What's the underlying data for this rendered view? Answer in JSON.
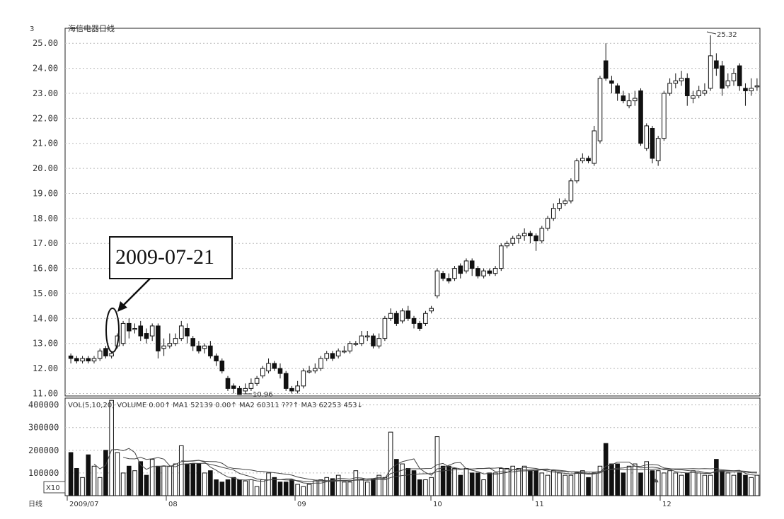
{
  "chart_data": {
    "type": "candlestick",
    "title": "海信电器日线",
    "y_unit_mark": "3",
    "price_axis": {
      "ticks": [
        "25.00",
        "24.00",
        "23.00",
        "22.00",
        "21.00",
        "20.00",
        "19.00",
        "18.00",
        "17.00",
        "16.00",
        "15.00",
        "14.00",
        "13.00",
        "12.00",
        "11.00"
      ],
      "ylim": [
        10.9,
        25.6
      ]
    },
    "volume_axis": {
      "ticks": [
        "400000",
        "300000",
        "200000",
        "100000"
      ],
      "ylim": [
        0,
        430000
      ],
      "scale_label": "X10"
    },
    "volume_header": "VOL(5,10,20)  VOLUME  0.00↑  MA1  52139  0.00↑  MA2  60311  ???↑  MA3  62253  453↓",
    "x_labels": [
      "日线",
      "2009/07",
      "08",
      "09",
      "10",
      "11",
      "12"
    ],
    "annotations": {
      "callout": "2009-07-21",
      "high_label": "25.32",
      "low_label": "10.96"
    },
    "grid": true,
    "candles": [
      [
        12.5,
        12.4,
        12.6,
        12.2
      ],
      [
        12.4,
        12.3,
        12.5,
        12.2
      ],
      [
        12.3,
        12.4,
        12.5,
        12.2
      ],
      [
        12.4,
        12.3,
        12.5,
        12.2
      ],
      [
        12.3,
        12.4,
        12.5,
        12.2
      ],
      [
        12.4,
        12.7,
        12.8,
        12.3
      ],
      [
        12.8,
        12.5,
        12.9,
        12.4
      ],
      [
        12.5,
        12.6,
        12.7,
        12.4
      ],
      [
        12.9,
        13.3,
        13.4,
        12.8
      ],
      [
        13.0,
        13.8,
        13.9,
        12.9
      ],
      [
        13.8,
        13.5,
        14.0,
        13.2
      ],
      [
        13.6,
        13.6,
        13.8,
        13.4
      ],
      [
        13.7,
        13.3,
        13.9,
        13.1
      ],
      [
        13.4,
        13.2,
        13.6,
        13.0
      ],
      [
        13.3,
        13.7,
        13.8,
        13.1
      ],
      [
        13.7,
        12.7,
        13.8,
        12.4
      ],
      [
        12.8,
        12.9,
        13.2,
        12.5
      ],
      [
        12.9,
        13.0,
        13.4,
        12.8
      ],
      [
        13.0,
        13.2,
        13.4,
        12.9
      ],
      [
        13.2,
        13.7,
        13.9,
        13.1
      ],
      [
        13.6,
        13.3,
        13.8,
        13.0
      ],
      [
        13.2,
        12.9,
        13.3,
        12.7
      ],
      [
        12.9,
        12.7,
        13.1,
        12.6
      ],
      [
        12.8,
        12.9,
        13.0,
        12.6
      ],
      [
        12.9,
        12.5,
        13.1,
        12.4
      ],
      [
        12.5,
        12.3,
        12.6,
        12.1
      ],
      [
        12.3,
        11.9,
        12.4,
        11.8
      ],
      [
        11.6,
        11.2,
        11.7,
        11.1
      ],
      [
        11.3,
        11.2,
        11.4,
        11.0
      ],
      [
        11.2,
        10.96,
        11.3,
        10.96
      ],
      [
        11.1,
        11.2,
        11.4,
        11.0
      ],
      [
        11.2,
        11.4,
        11.6,
        11.1
      ],
      [
        11.4,
        11.6,
        11.7,
        11.3
      ],
      [
        11.7,
        12.0,
        12.1,
        11.6
      ],
      [
        11.9,
        12.2,
        12.4,
        11.8
      ],
      [
        12.2,
        12.0,
        12.3,
        11.9
      ],
      [
        12.0,
        11.8,
        12.2,
        11.6
      ],
      [
        11.8,
        11.2,
        11.9,
        11.1
      ],
      [
        11.2,
        11.1,
        11.3,
        11.0
      ],
      [
        11.1,
        11.3,
        11.5,
        11.0
      ],
      [
        11.3,
        11.9,
        12.0,
        11.2
      ],
      [
        11.9,
        11.9,
        12.1,
        11.8
      ],
      [
        11.9,
        12.0,
        12.2,
        11.8
      ],
      [
        12.0,
        12.4,
        12.5,
        11.9
      ],
      [
        12.4,
        12.6,
        12.7,
        12.3
      ],
      [
        12.6,
        12.4,
        12.7,
        12.3
      ],
      [
        12.5,
        12.7,
        12.8,
        12.4
      ],
      [
        12.7,
        12.7,
        12.9,
        12.6
      ],
      [
        12.7,
        13.0,
        13.1,
        12.6
      ],
      [
        13.0,
        13.0,
        13.1,
        12.9
      ],
      [
        13.0,
        13.3,
        13.5,
        12.9
      ],
      [
        13.3,
        13.3,
        13.5,
        13.1
      ],
      [
        13.3,
        12.9,
        13.4,
        12.8
      ],
      [
        12.9,
        13.2,
        13.4,
        12.8
      ],
      [
        13.2,
        14.0,
        14.1,
        13.1
      ],
      [
        14.0,
        14.2,
        14.4,
        13.9
      ],
      [
        14.2,
        13.8,
        14.3,
        13.7
      ],
      [
        13.9,
        14.3,
        14.4,
        13.8
      ],
      [
        14.3,
        14.0,
        14.5,
        13.9
      ],
      [
        14.0,
        13.8,
        14.1,
        13.6
      ],
      [
        13.8,
        13.6,
        13.9,
        13.5
      ],
      [
        13.8,
        14.2,
        14.3,
        13.7
      ],
      [
        14.3,
        14.4,
        14.5,
        14.2
      ],
      [
        14.9,
        15.9,
        16.0,
        14.8
      ],
      [
        15.8,
        15.6,
        15.9,
        15.5
      ],
      [
        15.6,
        15.5,
        15.8,
        15.4
      ],
      [
        15.6,
        16.0,
        16.1,
        15.5
      ],
      [
        16.1,
        15.8,
        16.2,
        15.6
      ],
      [
        15.9,
        16.3,
        16.4,
        15.8
      ],
      [
        16.3,
        16.0,
        16.4,
        15.7
      ],
      [
        16.0,
        15.7,
        16.1,
        15.6
      ],
      [
        15.7,
        15.9,
        16.0,
        15.6
      ],
      [
        15.9,
        15.8,
        16.0,
        15.7
      ],
      [
        15.8,
        16.0,
        16.1,
        15.7
      ],
      [
        16.0,
        16.9,
        17.0,
        15.9
      ],
      [
        16.9,
        17.0,
        17.1,
        16.8
      ],
      [
        17.0,
        17.2,
        17.3,
        16.9
      ],
      [
        17.2,
        17.3,
        17.4,
        17.0
      ],
      [
        17.3,
        17.4,
        17.6,
        17.1
      ],
      [
        17.4,
        17.3,
        17.5,
        17.0
      ],
      [
        17.3,
        17.1,
        17.4,
        16.7
      ],
      [
        17.1,
        17.6,
        17.7,
        17.0
      ],
      [
        17.6,
        18.0,
        18.1,
        17.5
      ],
      [
        18.0,
        18.4,
        18.6,
        17.9
      ],
      [
        18.4,
        18.6,
        18.8,
        18.3
      ],
      [
        18.6,
        18.7,
        18.8,
        18.5
      ],
      [
        18.7,
        19.5,
        19.6,
        18.6
      ],
      [
        19.5,
        20.3,
        20.4,
        19.4
      ],
      [
        20.3,
        20.4,
        20.6,
        20.2
      ],
      [
        20.4,
        20.3,
        20.5,
        20.2
      ],
      [
        20.2,
        21.5,
        21.7,
        20.1
      ],
      [
        21.1,
        23.6,
        23.7,
        21.0
      ],
      [
        24.3,
        23.6,
        25.0,
        23.5
      ],
      [
        23.5,
        23.4,
        23.7,
        23.0
      ],
      [
        23.3,
        23.0,
        23.4,
        22.7
      ],
      [
        22.9,
        22.7,
        23.1,
        22.6
      ],
      [
        22.5,
        22.7,
        23.0,
        22.4
      ],
      [
        22.7,
        22.8,
        23.1,
        22.5
      ],
      [
        23.1,
        21.0,
        23.2,
        20.9
      ],
      [
        20.8,
        21.7,
        21.8,
        20.7
      ],
      [
        21.6,
        20.4,
        21.7,
        20.2
      ],
      [
        20.3,
        21.2,
        21.3,
        20.1
      ],
      [
        21.2,
        23.0,
        23.1,
        21.1
      ],
      [
        23.0,
        23.4,
        23.6,
        22.9
      ],
      [
        23.4,
        23.5,
        23.8,
        23.2
      ],
      [
        23.5,
        23.6,
        23.9,
        23.3
      ],
      [
        23.6,
        22.9,
        23.8,
        22.5
      ],
      [
        22.8,
        22.9,
        23.1,
        22.6
      ],
      [
        22.9,
        23.1,
        23.3,
        22.8
      ],
      [
        23.0,
        23.1,
        23.4,
        22.9
      ],
      [
        23.2,
        24.5,
        25.32,
        23.1
      ],
      [
        24.3,
        24.0,
        24.6,
        23.7
      ],
      [
        24.1,
        23.2,
        24.3,
        22.9
      ],
      [
        23.3,
        23.5,
        23.8,
        23.2
      ],
      [
        23.5,
        23.8,
        24.0,
        23.3
      ],
      [
        24.1,
        23.3,
        24.2,
        23.1
      ],
      [
        23.2,
        23.1,
        23.4,
        22.5
      ],
      [
        23.1,
        23.2,
        23.6,
        22.9
      ],
      [
        23.3,
        23.3,
        23.6,
        23.1
      ]
    ],
    "volumes": [
      1900,
      1200,
      800,
      1800,
      1300,
      800,
      2000,
      4200,
      1900,
      1000,
      1300,
      1100,
      1500,
      900,
      1600,
      1300,
      1300,
      1300,
      1400,
      2200,
      1400,
      1400,
      1400,
      1000,
      1100,
      700,
      600,
      700,
      800,
      700,
      650,
      700,
      400,
      700,
      1000,
      800,
      600,
      600,
      700,
      500,
      400,
      500,
      650,
      700,
      800,
      750,
      900,
      600,
      600,
      1100,
      700,
      600,
      750,
      900,
      800,
      2800,
      1600,
      1400,
      1200,
      1100,
      700,
      700,
      800,
      2600,
      1300,
      1300,
      1200,
      900,
      1200,
      1000,
      1000,
      700,
      1000,
      1000,
      1200,
      1200,
      1300,
      1200,
      1300,
      1100,
      1100,
      1000,
      900,
      1100,
      1000,
      900,
      900,
      1000,
      1100,
      800,
      1000,
      1300,
      2300,
      1400,
      1400,
      1000,
      1300,
      1400,
      1000,
      1500,
      1100,
      1100,
      1000,
      1100,
      1000,
      900,
      1000,
      1100,
      1000,
      900,
      900,
      1600,
      1100,
      1000,
      900,
      1000,
      900,
      800,
      900
    ]
  }
}
